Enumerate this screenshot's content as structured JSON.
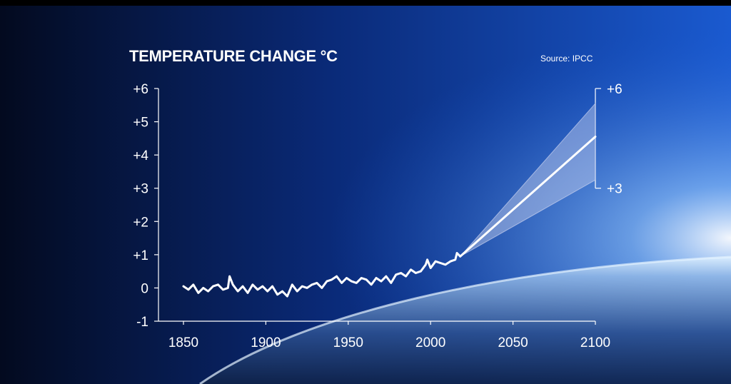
{
  "chart_data": {
    "type": "line",
    "title": "TEMPERATURE CHANGE °C",
    "source": "Source: IPCC",
    "xlabel": "",
    "ylabel": "",
    "xlim": [
      1850,
      2100
    ],
    "ylim": [
      -1,
      6
    ],
    "x_ticks": [
      "1850",
      "1900",
      "1950",
      "2000",
      "2050",
      "2100"
    ],
    "y_ticks": [
      "+6",
      "+5",
      "+4",
      "+3",
      "+2",
      "+1",
      "0",
      "-1"
    ],
    "projection_range_labels": {
      "high": "+6",
      "low": "+3"
    },
    "grid": false,
    "colors": {
      "line": "#ffffff",
      "band": "#c9d2f0",
      "axis": "#ffffff"
    },
    "series": [
      {
        "x": [
          1850,
          1853,
          1856,
          1859,
          1862,
          1865,
          1868,
          1871,
          1874,
          1877,
          1878,
          1880,
          1883,
          1886,
          1889,
          1892,
          1895,
          1898,
          1901,
          1904,
          1907,
          1910,
          1913,
          1916,
          1919,
          1922,
          1925,
          1928,
          1931,
          1934,
          1937,
          1940,
          1943,
          1946,
          1949,
          1952,
          1955,
          1958,
          1961,
          1964,
          1967,
          1970,
          1973,
          1976,
          1979,
          1982,
          1985,
          1988,
          1991,
          1994,
          1997,
          1998,
          2000,
          2003,
          2006,
          2009,
          2012,
          2015,
          2016,
          2018
        ],
        "values": [
          0.05,
          -0.05,
          0.1,
          -0.15,
          0.0,
          -0.1,
          0.05,
          0.1,
          -0.05,
          0.0,
          0.35,
          0.1,
          -0.1,
          0.05,
          -0.15,
          0.1,
          -0.05,
          0.05,
          -0.1,
          0.05,
          -0.2,
          -0.1,
          -0.25,
          0.1,
          -0.1,
          0.05,
          0.0,
          0.1,
          0.15,
          0.0,
          0.2,
          0.25,
          0.35,
          0.15,
          0.3,
          0.2,
          0.15,
          0.3,
          0.25,
          0.1,
          0.3,
          0.2,
          0.35,
          0.15,
          0.4,
          0.45,
          0.35,
          0.55,
          0.45,
          0.5,
          0.7,
          0.85,
          0.6,
          0.8,
          0.75,
          0.7,
          0.8,
          0.85,
          1.05,
          0.95
        ]
      },
      {
        "x": [
          2018,
          2100
        ],
        "values": [
          0.95,
          4.55
        ]
      }
    ],
    "band": {
      "x": [
        2018,
        2100
      ],
      "upper": [
        0.95,
        5.55
      ],
      "lower": [
        0.95,
        3.25
      ]
    }
  }
}
